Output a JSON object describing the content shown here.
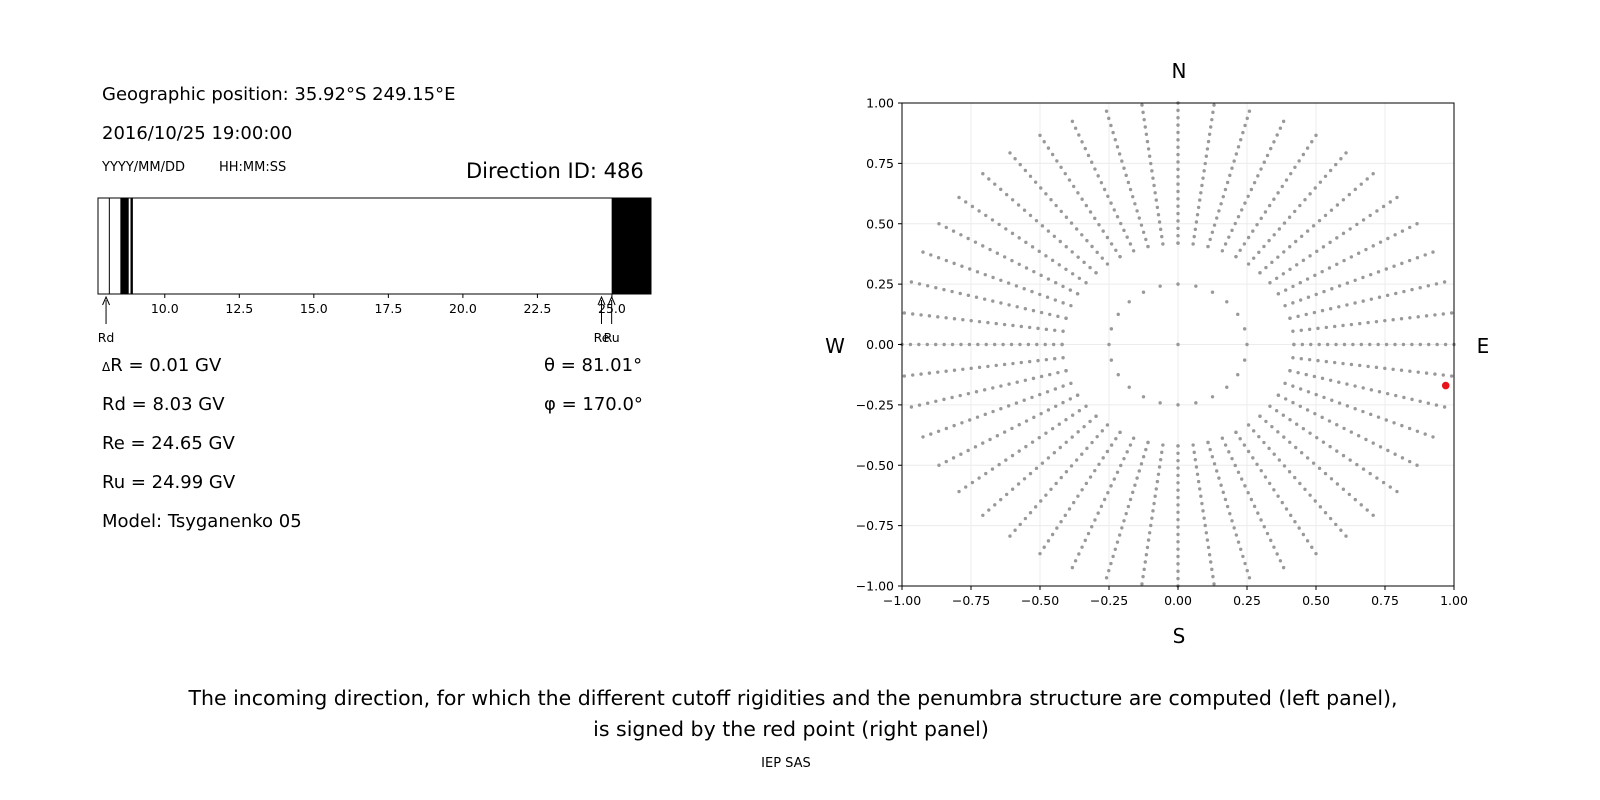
{
  "info": {
    "geo_position": "Geographic position: 35.92°S 249.15°E",
    "datetime": "2016/10/25 19:00:00",
    "date_format": "YYYY/MM/DD",
    "time_format": "HH:MM:SS",
    "direction_id": "Direction ID: 486",
    "delta_r": "R = 0.01 GV",
    "delta_symbol": "Δ",
    "rd": "Rd = 8.03 GV",
    "re": "Re = 24.65 GV",
    "ru": "Ru = 24.99 GV",
    "model": "Model: Tsyganenko 05",
    "theta": "θ = 81.01°",
    "phi": "φ = 170.0°"
  },
  "caption": {
    "line1": "The incoming direction, for which the different cutoff rigidities and the penumbra structure are computed (left panel),",
    "line2": "is signed by the red point (right panel)",
    "credit": "IEP SAS"
  },
  "chart_data": [
    {
      "type": "penumbra-bar",
      "xlim": [
        7.76,
        26.31
      ],
      "ticks": [
        "10.0",
        "12.5",
        "15.0",
        "17.5",
        "20.0",
        "22.5",
        "25.0"
      ],
      "tick_values": [
        10.0,
        12.5,
        15.0,
        17.5,
        20.0,
        22.5,
        25.0
      ],
      "forbidden_bands": [
        [
          8.51,
          8.79
        ],
        [
          8.85,
          8.93
        ],
        [
          24.99,
          26.31
        ]
      ],
      "outlined_bands": [
        [
          7.76,
          8.14
        ]
      ],
      "markers": [
        {
          "label": "Rd",
          "value": 8.03
        },
        {
          "label": "Re",
          "value": 24.65
        },
        {
          "label": "Ru",
          "value": 24.99
        }
      ]
    },
    {
      "type": "scatter",
      "xlim": [
        -1.0,
        1.0
      ],
      "ylim": [
        -1.0,
        1.0
      ],
      "xticks": [
        "−1.00",
        "−0.75",
        "−0.50",
        "−0.25",
        "0.00",
        "0.25",
        "0.50",
        "0.75",
        "1.00"
      ],
      "yticks": [
        "1.00",
        "0.75",
        "0.50",
        "0.25",
        "0.00",
        "−0.25",
        "−0.50",
        "−0.75",
        "−1.00"
      ],
      "tick_values": [
        -1.0,
        -0.75,
        -0.5,
        -0.25,
        0.0,
        0.25,
        0.5,
        0.75,
        1.0
      ],
      "grid": true,
      "compass": {
        "north": "N",
        "south": "S",
        "west": "W",
        "east": "E"
      },
      "series": [
        {
          "role": "directions",
          "color": "#999999",
          "rings": [
            {
              "radius": 0.0,
              "count": 1
            },
            {
              "radius": 0.25,
              "count": 24
            },
            {
              "radius": 0.42,
              "count": 24
            },
            {
              "radius_from": 0.42,
              "radius_to": 1.0,
              "count_per_ray": 20,
              "rays": 24,
              "angle_offset_deg": 7.5
            },
            {
              "radius_from": 0.42,
              "radius_to": 1.0,
              "count_per_ray": 20,
              "rays": 24,
              "angle_offset_deg": 0
            }
          ]
        },
        {
          "role": "selected-direction",
          "color": "#e8141b",
          "x": [
            0.97
          ],
          "y": [
            -0.17
          ]
        }
      ]
    }
  ]
}
